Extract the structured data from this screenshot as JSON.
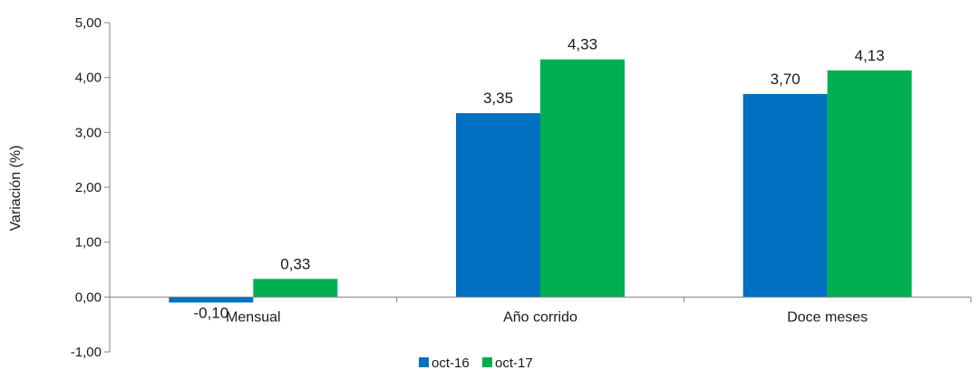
{
  "chart_data": {
    "type": "bar",
    "categories": [
      "Mensual",
      "Año corrido",
      "Doce meses"
    ],
    "series": [
      {
        "name": "oct-16",
        "values": [
          -0.1,
          3.35,
          3.7
        ],
        "labels": [
          "-0,10",
          "3,35",
          "3,70"
        ]
      },
      {
        "name": "oct-17",
        "values": [
          0.33,
          4.33,
          4.13
        ],
        "labels": [
          "0,33",
          "4,33",
          "4,13"
        ]
      }
    ],
    "ylabel": "Variación (%)",
    "ylim": [
      -1,
      5
    ],
    "yticks": [
      5,
      4,
      3,
      2,
      1,
      0,
      -1
    ],
    "ytick_labels": [
      "5,00",
      "4,00",
      "3,00",
      "2,00",
      "1,00",
      "0,00",
      "-1,00"
    ],
    "grid": false,
    "legend_position": "bottom",
    "colors": {
      "oct-16": "#0070c0",
      "oct-17": "#00b050",
      "axis": "#808080"
    }
  }
}
